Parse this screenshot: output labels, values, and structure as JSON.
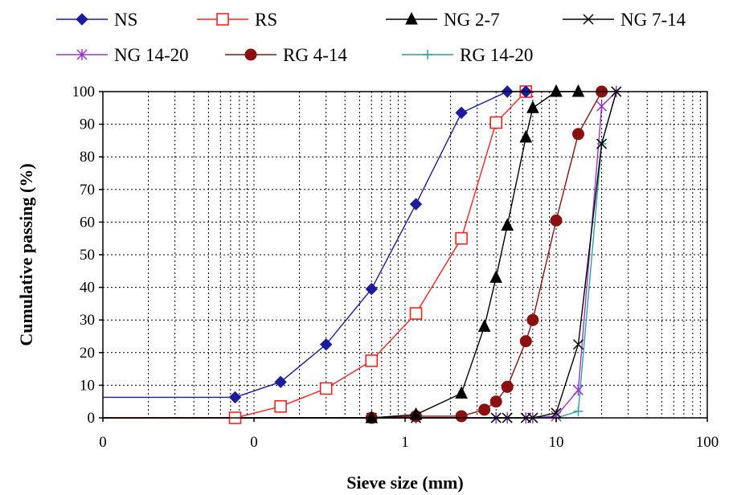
{
  "chart_data": {
    "type": "line",
    "title": "",
    "xlabel": "Sieve size (mm)",
    "ylabel": "Cumulative passing (%)",
    "xscale": "log",
    "xlim": [
      0.01,
      100
    ],
    "ylim": [
      0,
      100
    ],
    "x_tick_labels": [
      {
        "value": 0.01,
        "label": "0"
      },
      {
        "value": 0.1,
        "label": "0"
      },
      {
        "value": 1,
        "label": "1"
      },
      {
        "value": 10,
        "label": "10"
      },
      {
        "value": 100,
        "label": "100"
      }
    ],
    "y_ticks": [
      0,
      10,
      20,
      30,
      40,
      50,
      60,
      70,
      80,
      90,
      100
    ],
    "grid": true,
    "legend_position": "top",
    "series": [
      {
        "name": "NS",
        "color": "#1c1c9c",
        "marker": "diamond",
        "x": [
          0.075,
          0.15,
          0.3,
          0.6,
          1.18,
          2.36,
          4.75,
          6.3
        ],
        "y": [
          6.3,
          11,
          22.5,
          39.5,
          65.5,
          93.5,
          100,
          100
        ]
      },
      {
        "name": "RS",
        "color": "#ff2020",
        "marker": "square-open",
        "x": [
          0.075,
          0.15,
          0.3,
          0.6,
          1.18,
          2.36,
          4.0,
          6.3
        ],
        "y": [
          0,
          3.5,
          9,
          17.5,
          32,
          55,
          90.5,
          100
        ]
      },
      {
        "name": "NG 2-7",
        "color": "#000000",
        "marker": "triangle",
        "x": [
          0.6,
          1.18,
          2.36,
          3.35,
          4.0,
          4.75,
          6.3,
          7.0,
          10.0,
          14.0
        ],
        "y": [
          0,
          1,
          7.5,
          28,
          43,
          59,
          86,
          95,
          100,
          100
        ]
      },
      {
        "name": "NG 7-14",
        "color": "#000000",
        "marker": "x-cross",
        "x": [
          0.6,
          1.18,
          4.0,
          4.75,
          6.3,
          7.0,
          10.0,
          14.0,
          20.0,
          25.0
        ],
        "y": [
          0,
          0,
          0,
          0,
          0,
          0,
          1.5,
          22.5,
          84,
          100
        ]
      },
      {
        "name": "NG 14-20",
        "color": "#9933cc",
        "marker": "asterisk",
        "x": [
          0.6,
          1.18,
          4.0,
          4.75,
          6.3,
          7.0,
          10.0,
          14.0,
          20.0,
          25.0
        ],
        "y": [
          0,
          0,
          0,
          0,
          0,
          0,
          0.5,
          8.5,
          95.5,
          100
        ]
      },
      {
        "name": "RG 4-14",
        "color": "#8b1010",
        "marker": "circle",
        "x": [
          0.6,
          1.18,
          2.36,
          3.35,
          4.0,
          4.75,
          6.3,
          7.0,
          10.0,
          14.0,
          20.0
        ],
        "y": [
          0,
          0.5,
          0.5,
          2.5,
          5,
          9.5,
          23.5,
          30,
          60.5,
          87,
          100
        ]
      },
      {
        "name": "RG 14-20",
        "color": "#29a3a3",
        "marker": "plus",
        "x": [
          0.6,
          1.18,
          4.0,
          6.3,
          10.0,
          14.0,
          20.0,
          25.0
        ],
        "y": [
          0,
          0,
          0,
          0,
          0,
          2,
          84,
          100
        ]
      }
    ]
  }
}
